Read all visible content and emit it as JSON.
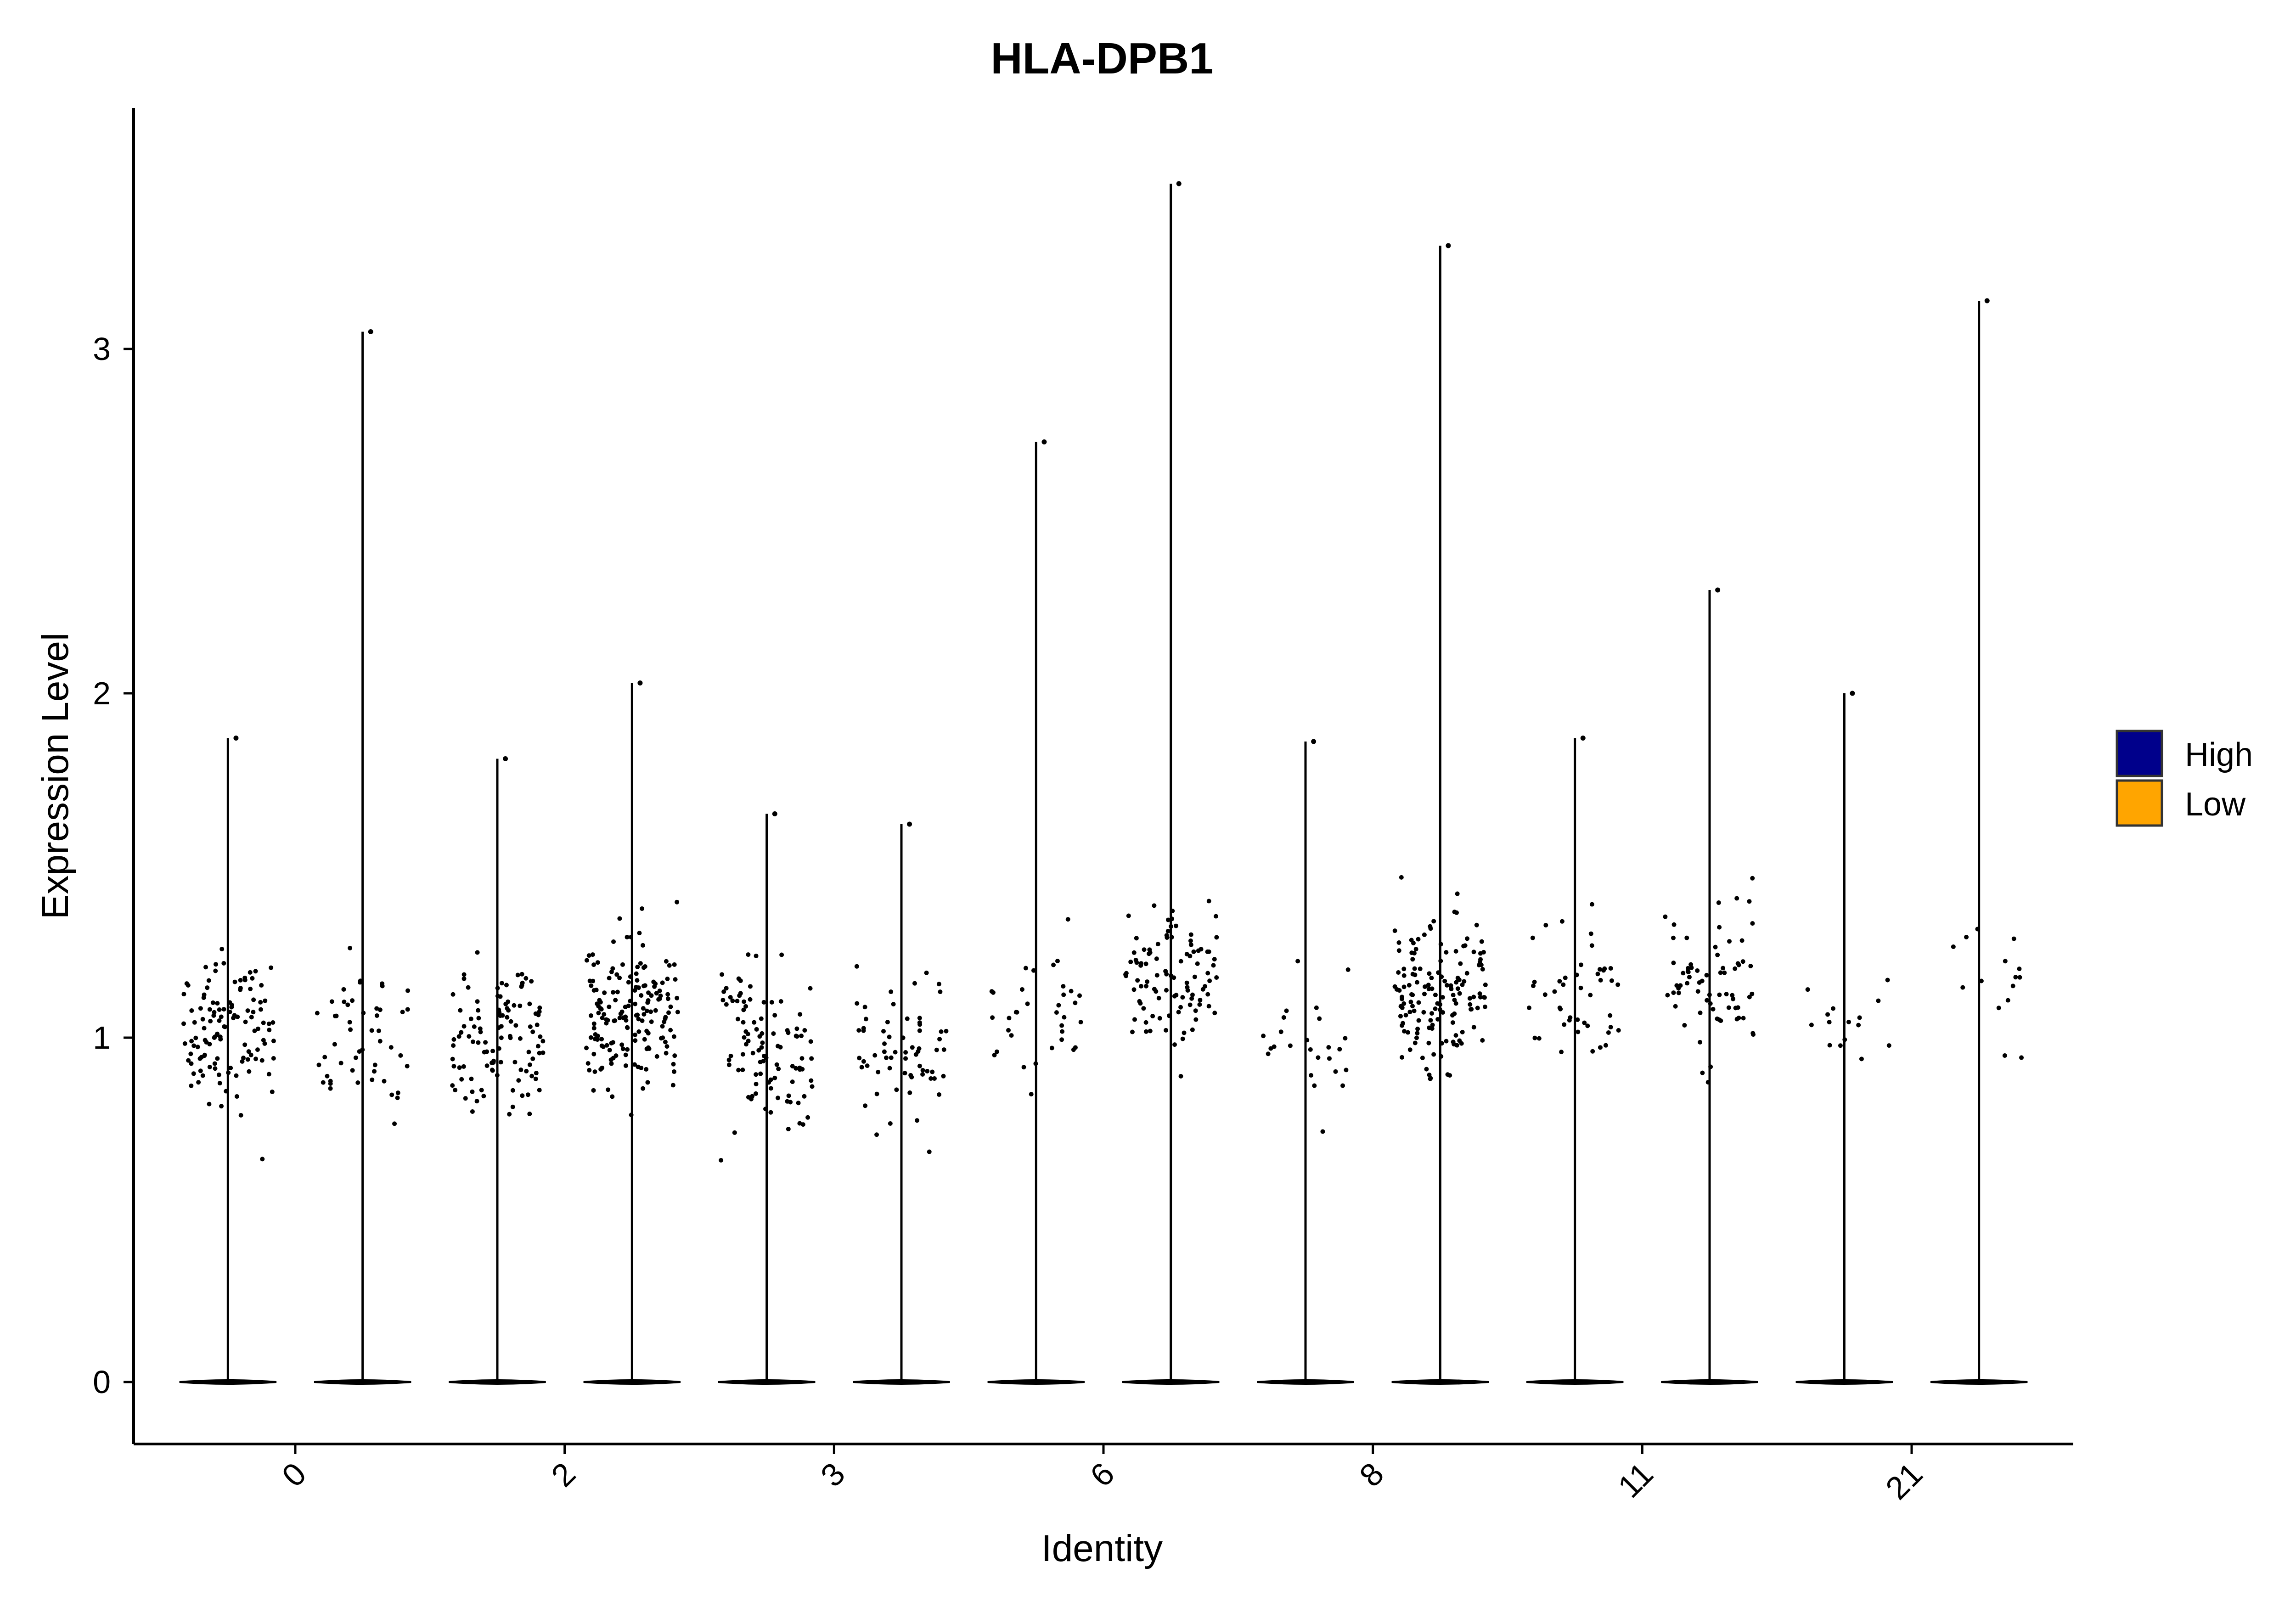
{
  "chart_data": {
    "type": "violin",
    "title": "HLA-DPB1",
    "xlabel": "Identity",
    "ylabel": "Expression Level",
    "ylim": [
      -0.18,
      3.7
    ],
    "yticks": [
      0,
      1,
      2,
      3
    ],
    "categories": [
      "0",
      "2",
      "3",
      "6",
      "8",
      "11",
      "21"
    ],
    "legend": {
      "position": "right",
      "entries": [
        {
          "name": "High",
          "color": "#00008B"
        },
        {
          "name": "Low",
          "color": "#FFA500"
        }
      ]
    },
    "groups": [
      {
        "category": "0",
        "split": "High",
        "max": 1.87,
        "cluster_center": 1.02,
        "n_points": 120
      },
      {
        "category": "0",
        "split": "Low",
        "max": 3.05,
        "cluster_center": 1.0,
        "n_points": 50
      },
      {
        "category": "2",
        "split": "High",
        "max": 1.81,
        "cluster_center": 1.0,
        "n_points": 110
      },
      {
        "category": "2",
        "split": "Low",
        "max": 2.03,
        "cluster_center": 1.08,
        "n_points": 170
      },
      {
        "category": "3",
        "split": "High",
        "max": 1.65,
        "cluster_center": 0.97,
        "n_points": 100
      },
      {
        "category": "3",
        "split": "Low",
        "max": 1.62,
        "cluster_center": 0.98,
        "n_points": 65
      },
      {
        "category": "6",
        "split": "High",
        "max": 2.73,
        "cluster_center": 1.05,
        "n_points": 35
      },
      {
        "category": "6",
        "split": "Low",
        "max": 3.48,
        "cluster_center": 1.17,
        "n_points": 100
      },
      {
        "category": "8",
        "split": "High",
        "max": 1.86,
        "cluster_center": 1.0,
        "n_points": 25
      },
      {
        "category": "8",
        "split": "Low",
        "max": 3.3,
        "cluster_center": 1.12,
        "n_points": 150
      },
      {
        "category": "11",
        "split": "High",
        "max": 1.87,
        "cluster_center": 1.12,
        "n_points": 45
      },
      {
        "category": "11",
        "split": "Low",
        "max": 2.3,
        "cluster_center": 1.15,
        "n_points": 70
      },
      {
        "category": "21",
        "split": "High",
        "max": 2.0,
        "cluster_center": 1.05,
        "n_points": 15
      },
      {
        "category": "21",
        "split": "Low",
        "max": 3.14,
        "cluster_center": 1.15,
        "n_points": 15
      }
    ]
  }
}
